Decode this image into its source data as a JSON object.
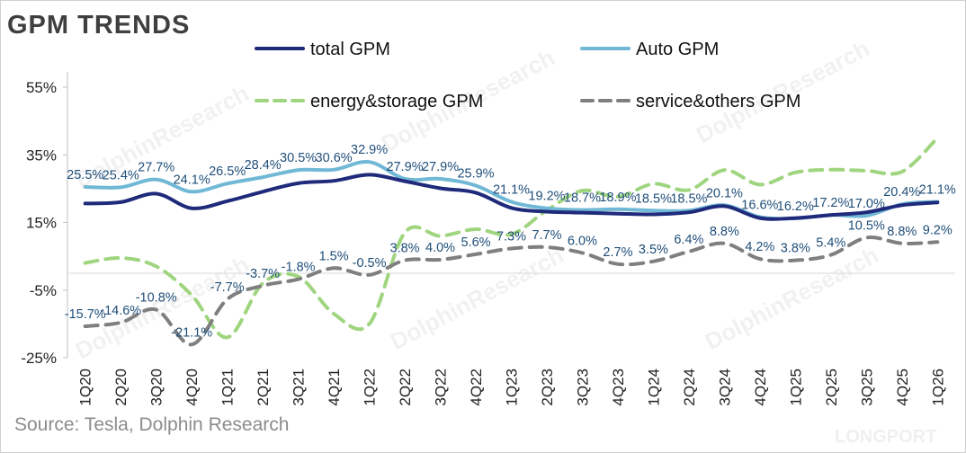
{
  "title": "GPM TRENDS",
  "source": "Source: Tesla,  Dolphin Research",
  "watermarks": [
    "DolphinResearch",
    "DolphinResearch",
    "DolphinResearch",
    "DolphinResearch",
    "DolphinResearch",
    "DolphinResearch"
  ],
  "watermark_brand": "LONGPORT",
  "chart_data": {
    "type": "line",
    "title": "GPM TRENDS",
    "ylim": [
      -25,
      55
    ],
    "yticks": [
      55,
      35,
      15,
      -5,
      -25
    ],
    "ytick_labels": [
      "55%",
      "35%",
      "15%",
      "-5%",
      "-25%"
    ],
    "categories": [
      "1Q20",
      "2Q20",
      "3Q20",
      "4Q20",
      "1Q21",
      "2Q21",
      "3Q21",
      "4Q21",
      "1Q22",
      "2Q22",
      "3Q22",
      "4Q22",
      "1Q23",
      "2Q23",
      "3Q23",
      "4Q23",
      "1Q24",
      "2Q24",
      "3Q24",
      "4Q24",
      "1Q25",
      "2Q25",
      "3Q25",
      "4Q25",
      "1Q26"
    ],
    "series": [
      {
        "name": "total GPM",
        "color": "#1f2a7a",
        "style": "solid",
        "values": [
          20.6,
          21.0,
          23.5,
          19.2,
          21.3,
          24.1,
          26.6,
          27.3,
          29.1,
          27.2,
          25.1,
          23.8,
          19.3,
          18.2,
          17.9,
          17.6,
          17.4,
          18.0,
          19.8,
          16.3,
          16.3,
          17.2,
          18.0,
          20.1,
          20.9
        ]
      },
      {
        "name": "Auto GPM",
        "color": "#70b8d6",
        "style": "solid",
        "values": [
          25.5,
          25.4,
          27.7,
          24.1,
          26.5,
          28.4,
          30.5,
          30.6,
          32.9,
          27.9,
          27.9,
          25.9,
          21.1,
          19.2,
          18.7,
          18.9,
          18.5,
          18.5,
          20.1,
          16.6,
          16.2,
          17.2,
          17.0,
          20.4,
          21.1
        ],
        "labels": [
          "25.5%",
          "25.4%",
          "27.7%",
          "24.1%",
          "26.5%",
          "28.4%",
          "30.5%",
          "30.6%",
          "32.9%",
          "27.9%",
          "27.9%",
          "25.9%",
          "21.1%",
          "19.2%",
          "18.7%",
          "18.9%",
          "18.5%",
          "18.5%",
          "20.1%",
          "16.6%",
          "16.2%",
          "17.2%",
          "17.0%",
          "20.4%",
          "21.1%"
        ]
      },
      {
        "name": "energy&storage GPM",
        "color": "#9fd57f",
        "style": "dashed",
        "values": [
          3.0,
          4.5,
          2.0,
          -6.5,
          -19.0,
          -3.0,
          -1.0,
          -12.0,
          -15.0,
          12.0,
          11.0,
          13.0,
          11.5,
          18.6,
          24.4,
          22.6,
          26.4,
          24.6,
          30.5,
          26.2,
          29.8,
          30.6,
          30.3,
          30.0,
          40.0
        ]
      },
      {
        "name": "service&others GPM",
        "color": "#7f7f7f",
        "style": "dashed",
        "values": [
          -15.7,
          -14.6,
          -10.8,
          -21.1,
          -7.7,
          -3.7,
          -1.8,
          1.5,
          -0.5,
          3.8,
          4.0,
          5.6,
          7.3,
          7.7,
          6.0,
          2.7,
          3.5,
          6.4,
          8.8,
          4.2,
          3.8,
          5.4,
          10.5,
          8.8,
          9.2
        ],
        "labels": [
          "-15.7%",
          "-14.6%",
          "-10.8%",
          "-21.1%",
          "-7.7%",
          "-3.7%",
          "-1.8%",
          "1.5%",
          "-0.5%",
          "3.8%",
          "4.0%",
          "5.6%",
          "7.3%",
          "7.7%",
          "6.0%",
          "2.7%",
          "3.5%",
          "6.4%",
          "8.8%",
          "4.2%",
          "3.8%",
          "5.4%",
          "10.5%",
          "8.8%",
          "9.2%"
        ]
      }
    ],
    "legend": [
      "total GPM",
      "Auto GPM",
      "energy&storage GPM",
      "service&others GPM"
    ],
    "legend_position": "top"
  }
}
